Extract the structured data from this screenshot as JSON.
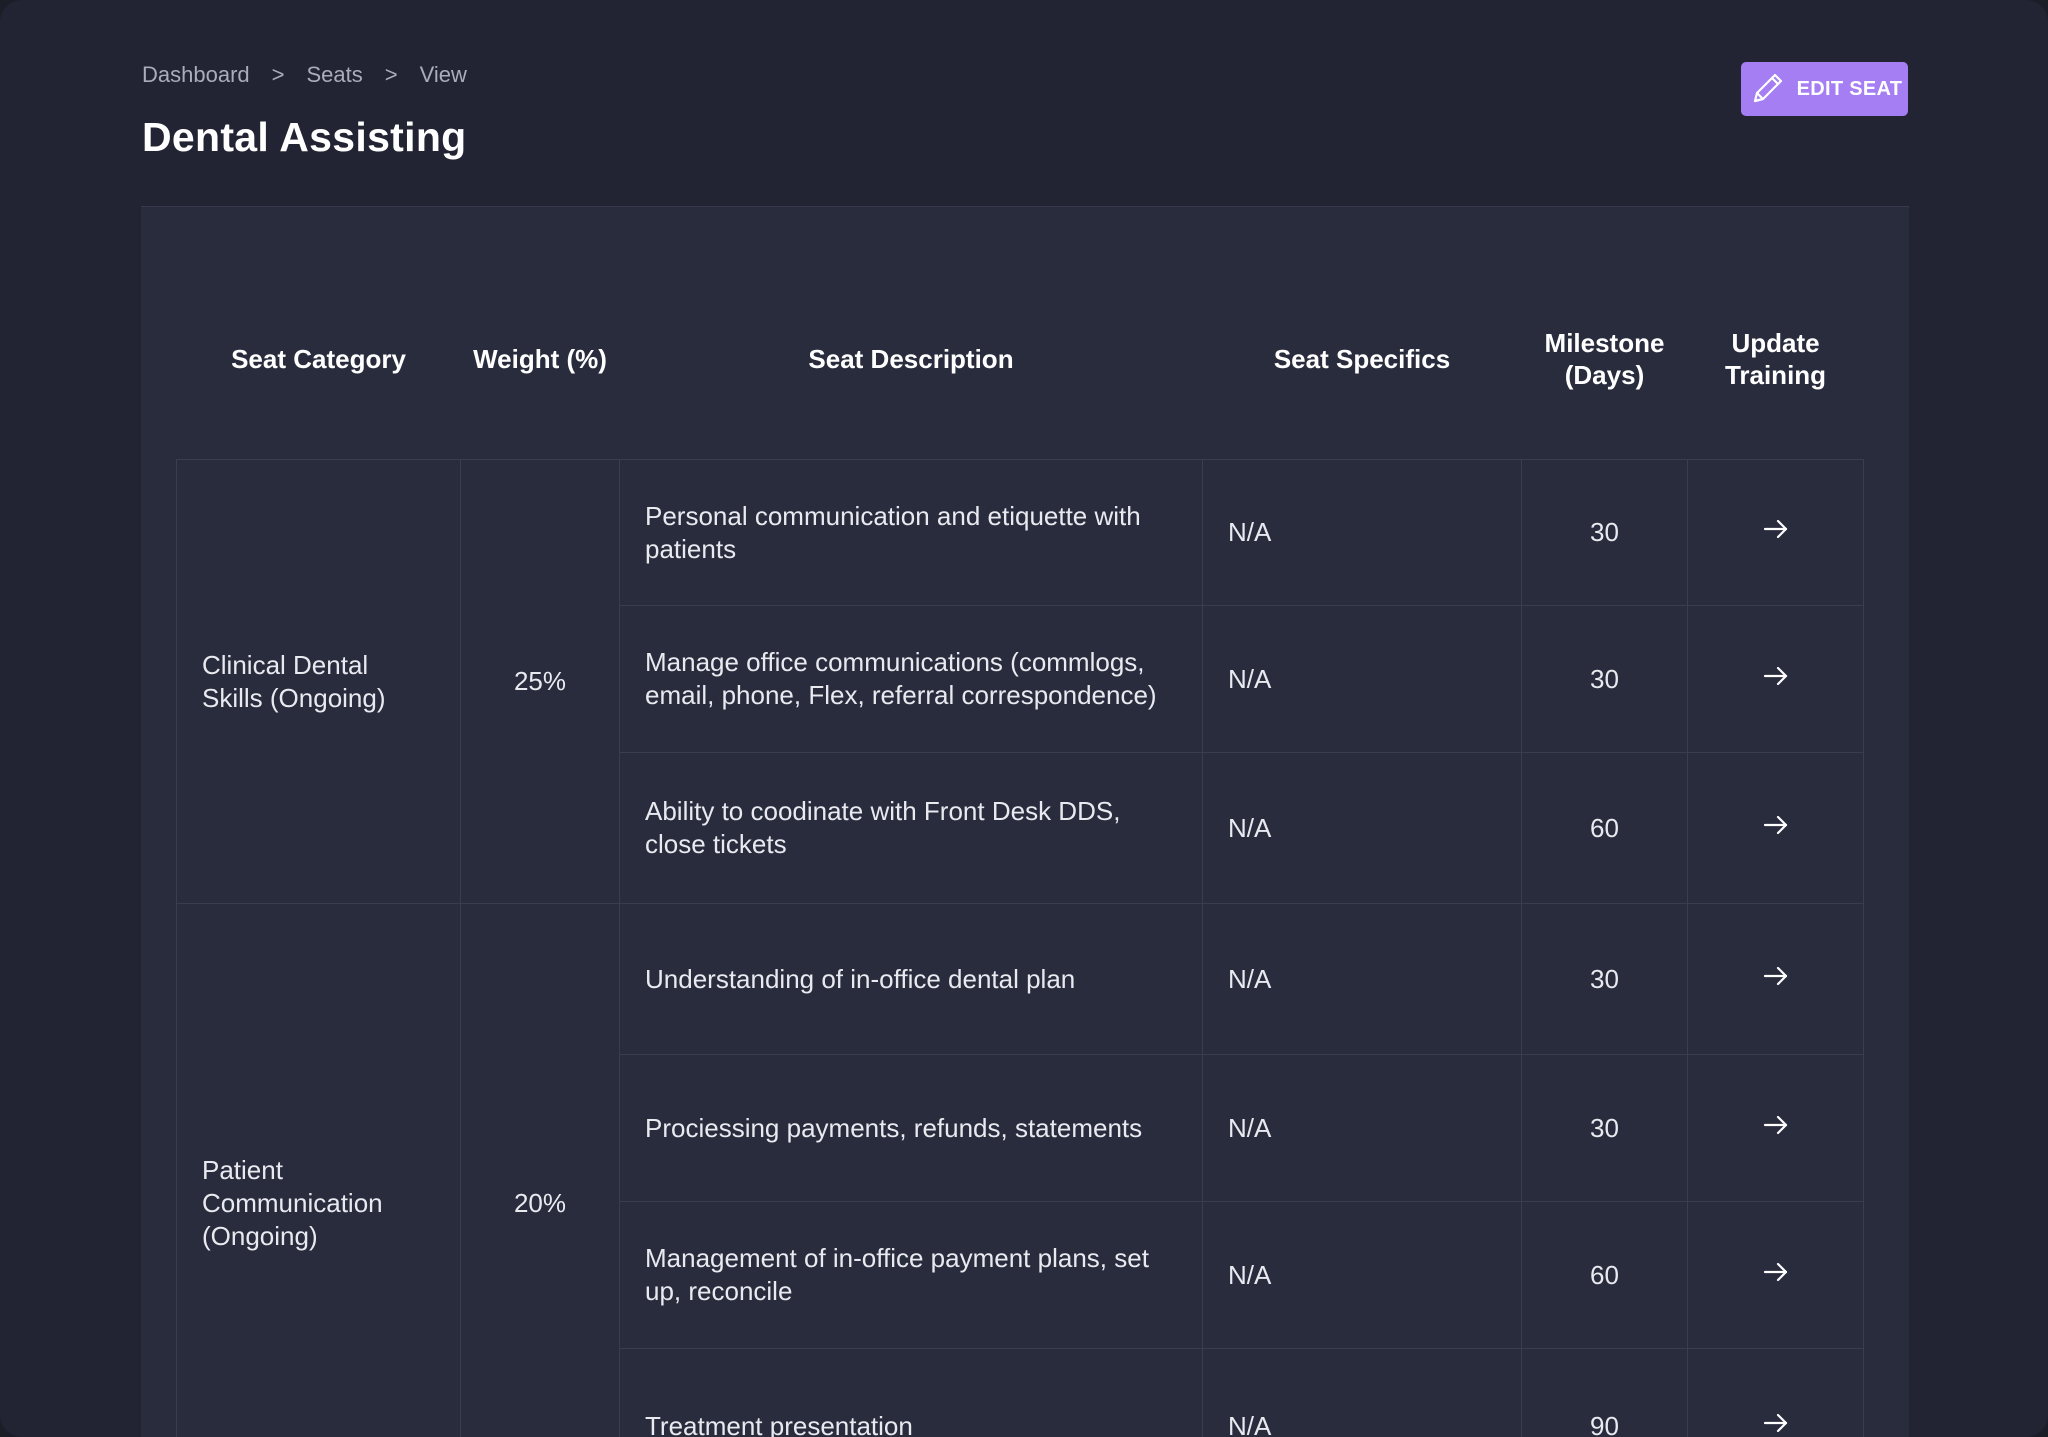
{
  "breadcrumb": {
    "items": [
      "Dashboard",
      "Seats",
      "View"
    ],
    "separator": ">"
  },
  "page": {
    "title": "Dental Assisting"
  },
  "toolbar": {
    "edit_label": "EDIT SEAT",
    "edit_icon": "pencil-icon",
    "accent_color": "#a47ef2"
  },
  "table": {
    "headers": {
      "category": "Seat Category",
      "weight": "Weight (%)",
      "description": "Seat Description",
      "specifics": "Seat Specifics",
      "milestone_line1": "Milestone",
      "milestone_line2": "(Days)",
      "update_line1": "Update",
      "update_line2": "Training"
    },
    "update_icon": "arrow-right-icon",
    "groups": [
      {
        "category_line1": "Clinical Dental",
        "category_line2": "Skills (Ongoing)",
        "weight": "25%",
        "rows": [
          {
            "desc_line1": "Personal communication and etiquette with",
            "desc_line2": "patients",
            "specifics": "N/A",
            "milestone": "30"
          },
          {
            "desc_line1": "Manage office communications (commlogs,",
            "desc_line2": "email, phone, Flex, referral correspondence)",
            "specifics": "N/A",
            "milestone": "30"
          },
          {
            "desc_line1": "Ability to coodinate with Front Desk DDS,",
            "desc_line2": "close tickets",
            "specifics": "N/A",
            "milestone": "60"
          }
        ]
      },
      {
        "category_line1": "Patient",
        "category_line2": "Communication",
        "category_line3": "(Ongoing)",
        "weight": "20%",
        "rows": [
          {
            "desc_line1": "Understanding of in-office dental plan",
            "specifics": "N/A",
            "milestone": "30"
          },
          {
            "desc_line1": "Prociessing payments, refunds, statements",
            "specifics": "N/A",
            "milestone": "30"
          },
          {
            "desc_line1": "Management of in-office payment plans, set",
            "desc_line2": "up, reconcile",
            "specifics": "N/A",
            "milestone": "60"
          },
          {
            "desc_line1": "Treatment presentation",
            "specifics": "N/A",
            "milestone": "90"
          }
        ]
      }
    ]
  }
}
